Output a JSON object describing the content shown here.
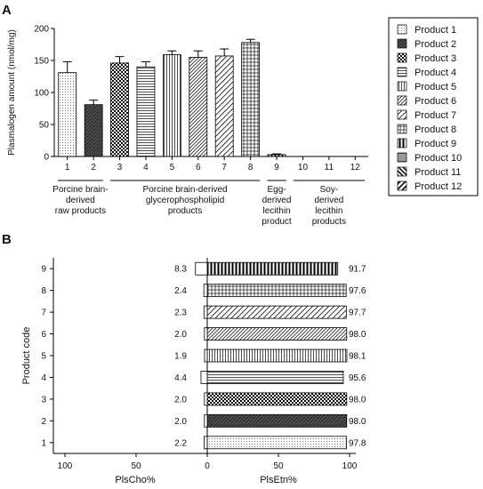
{
  "panel_a_label": "A",
  "panel_b_label": "B",
  "colors": {
    "axis": "#000000",
    "bar_outline": "#000000",
    "background": "#ffffff"
  },
  "groups": [
    {
      "lines": [
        "Porcine brain-",
        "derived",
        "raw products"
      ],
      "products": [
        1,
        2
      ]
    },
    {
      "lines": [
        "Porcine brain-derived",
        "glycerophospholipid",
        "products"
      ],
      "products": [
        3,
        4,
        5,
        6,
        7,
        8
      ]
    },
    {
      "lines": [
        "Egg-",
        "derived",
        "lecithin",
        "product"
      ],
      "products": [
        9
      ]
    },
    {
      "lines": [
        "Soy-",
        "derived",
        "lecithin",
        "products"
      ],
      "products": [
        10,
        11,
        12
      ]
    }
  ],
  "chart_data": [
    {
      "type": "bar",
      "panel": "A",
      "ylabel": "Plasmalogen amount (nmol/mg)",
      "xlabel": "",
      "ylim": [
        0,
        200
      ],
      "yticks": [
        0,
        50,
        100,
        150,
        200
      ],
      "categories": [
        "1",
        "2",
        "3",
        "4",
        "5",
        "6",
        "7",
        "8",
        "9",
        "10",
        "11",
        "12"
      ],
      "values": [
        131,
        81,
        146,
        140,
        159,
        155,
        157,
        178,
        3,
        0,
        0,
        0
      ],
      "errors": [
        17,
        7,
        10,
        8,
        6,
        10,
        11,
        5,
        1,
        0,
        0,
        0
      ],
      "patterns": [
        "dots",
        "solid-dark",
        "checker",
        "hlines",
        "vlines",
        "diag-dense",
        "diag-medium",
        "grid",
        "vlines-bold",
        "hdense",
        "diag-bold",
        "diag-wide"
      ],
      "legend": {
        "position": "right",
        "entries": [
          "Product 1",
          "Product 2",
          "Product 3",
          "Product 4",
          "Product 5",
          "Product 6",
          "Product 7",
          "Product 8",
          "Product 9",
          "Product 10",
          "Product 11",
          "Product 12"
        ]
      }
    },
    {
      "type": "bar",
      "orientation": "horizontal",
      "panel": "B",
      "ylabel": "Product code",
      "xlabel_left": "PlsCho%",
      "xlabel_right": "PlsEtn%",
      "xticks": [
        "100",
        "50",
        "0",
        "50",
        "100"
      ],
      "categories": [
        "1",
        "2",
        "3",
        "4",
        "5",
        "6",
        "7",
        "8",
        "9"
      ],
      "plscho": [
        2.2,
        2.0,
        2.0,
        4.4,
        1.9,
        2.0,
        2.3,
        2.4,
        8.3
      ],
      "plsetn": [
        97.8,
        98.0,
        98.0,
        95.6,
        98.1,
        98.0,
        97.7,
        97.6,
        91.7
      ],
      "plscho_labels": [
        "2.2",
        "2.0",
        "2.0",
        "4.4",
        "1.9",
        "2.0",
        "2.3",
        "2.4",
        "8.3"
      ],
      "plsetn_labels": [
        "97.8",
        "98.0",
        "98.0",
        "95.6",
        "98.1",
        "98.0",
        "97.7",
        "97.6",
        "91.7"
      ],
      "patterns": [
        "dots",
        "solid-dark",
        "checker",
        "hlines",
        "vlines",
        "diag-dense",
        "diag-medium",
        "grid",
        "vlines-bold"
      ]
    }
  ]
}
